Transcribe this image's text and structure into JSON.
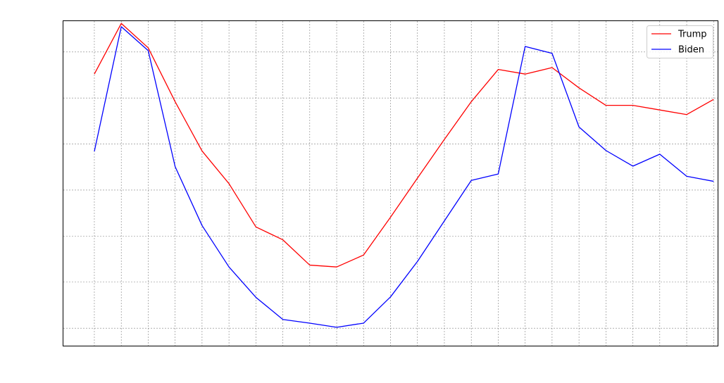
{
  "chart_data": {
    "type": "line",
    "x": [
      0,
      1,
      2,
      3,
      4,
      5,
      6,
      7,
      8,
      9,
      10,
      11,
      12,
      13,
      14,
      15,
      16,
      17,
      18,
      19,
      20,
      21,
      22,
      23
    ],
    "series": [
      {
        "name": "Trump",
        "color": "#ff0000",
        "values": [
          6.52,
          7.62,
          7.09,
          5.92,
          4.85,
          4.14,
          3.2,
          2.92,
          2.37,
          2.33,
          2.59,
          3.41,
          4.26,
          5.1,
          5.92,
          6.62,
          6.52,
          6.66,
          6.22,
          5.84,
          5.84,
          5.74,
          5.64,
          5.97
        ],
        "color_name": "red"
      },
      {
        "name": "Biden",
        "color": "#0000ff",
        "values": [
          4.84,
          7.55,
          7.03,
          4.51,
          3.23,
          2.33,
          1.67,
          1.19,
          1.11,
          1.02,
          1.11,
          1.68,
          2.45,
          3.33,
          4.21,
          4.35,
          7.12,
          6.97,
          5.37,
          4.86,
          4.52,
          4.78,
          4.3,
          4.19
        ],
        "color_name": "blue"
      }
    ],
    "xlim": [
      -1.15,
      23.15
    ],
    "ylim": [
      0.62,
      7.67
    ],
    "x_gridlines": [
      0,
      1,
      2,
      3,
      4,
      5,
      6,
      7,
      8,
      9,
      10,
      11,
      12,
      13,
      14,
      15,
      16,
      17,
      18,
      19,
      20,
      21,
      22,
      23
    ],
    "y_gridlines": [
      1,
      2,
      3,
      4,
      5,
      6,
      7
    ],
    "grid": true,
    "grid_color": "#808080",
    "legend_position": "top-right",
    "title": "",
    "xlabel": "",
    "ylabel": ""
  }
}
